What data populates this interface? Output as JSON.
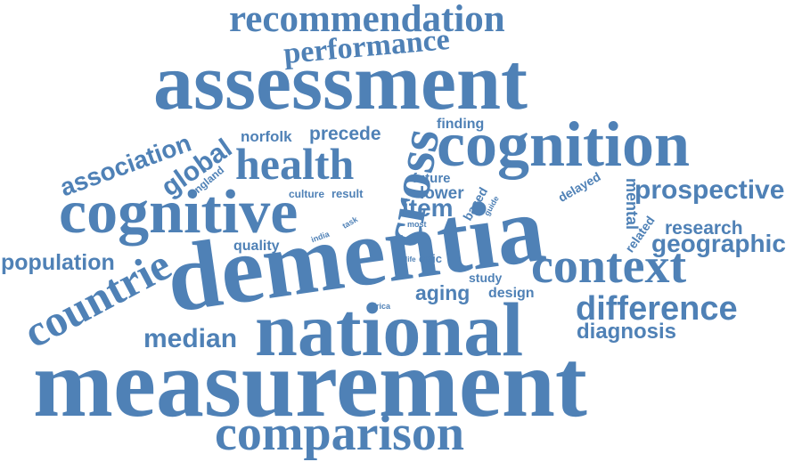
{
  "colors": {
    "word": "#4f81b6",
    "background": "#ffffff"
  },
  "words": {
    "recommendation": "recommendation",
    "performance": "performance",
    "assessment": "assessment",
    "finding": "finding",
    "cognition": "cognition",
    "norfolk": "norfolk",
    "precede": "precede",
    "cross": "cross",
    "association": "association",
    "global": "global",
    "health": "health",
    "england": "england",
    "future": "future",
    "prospective": "prospective",
    "delayed": "delayed",
    "mental": "mental",
    "lower": "lower",
    "cognitive": "cognitive",
    "culture": "culture",
    "result": "result",
    "item": "item",
    "based": "based",
    "guide": "guide",
    "task": "task",
    "most": "most",
    "research": "research",
    "related": "related",
    "india": "india",
    "geographic": "geographic",
    "quality": "quality",
    "dementia": "dementia",
    "population": "population",
    "life": "life",
    "epic": "epic",
    "context": "context",
    "countrie": "countrie",
    "study": "study",
    "aging": "aging",
    "design": "design",
    "difference": "difference",
    "africa": "africa",
    "national": "national",
    "median": "median",
    "diagnosis": "diagnosis",
    "measurement": "measurement",
    "comparison": "comparison"
  }
}
